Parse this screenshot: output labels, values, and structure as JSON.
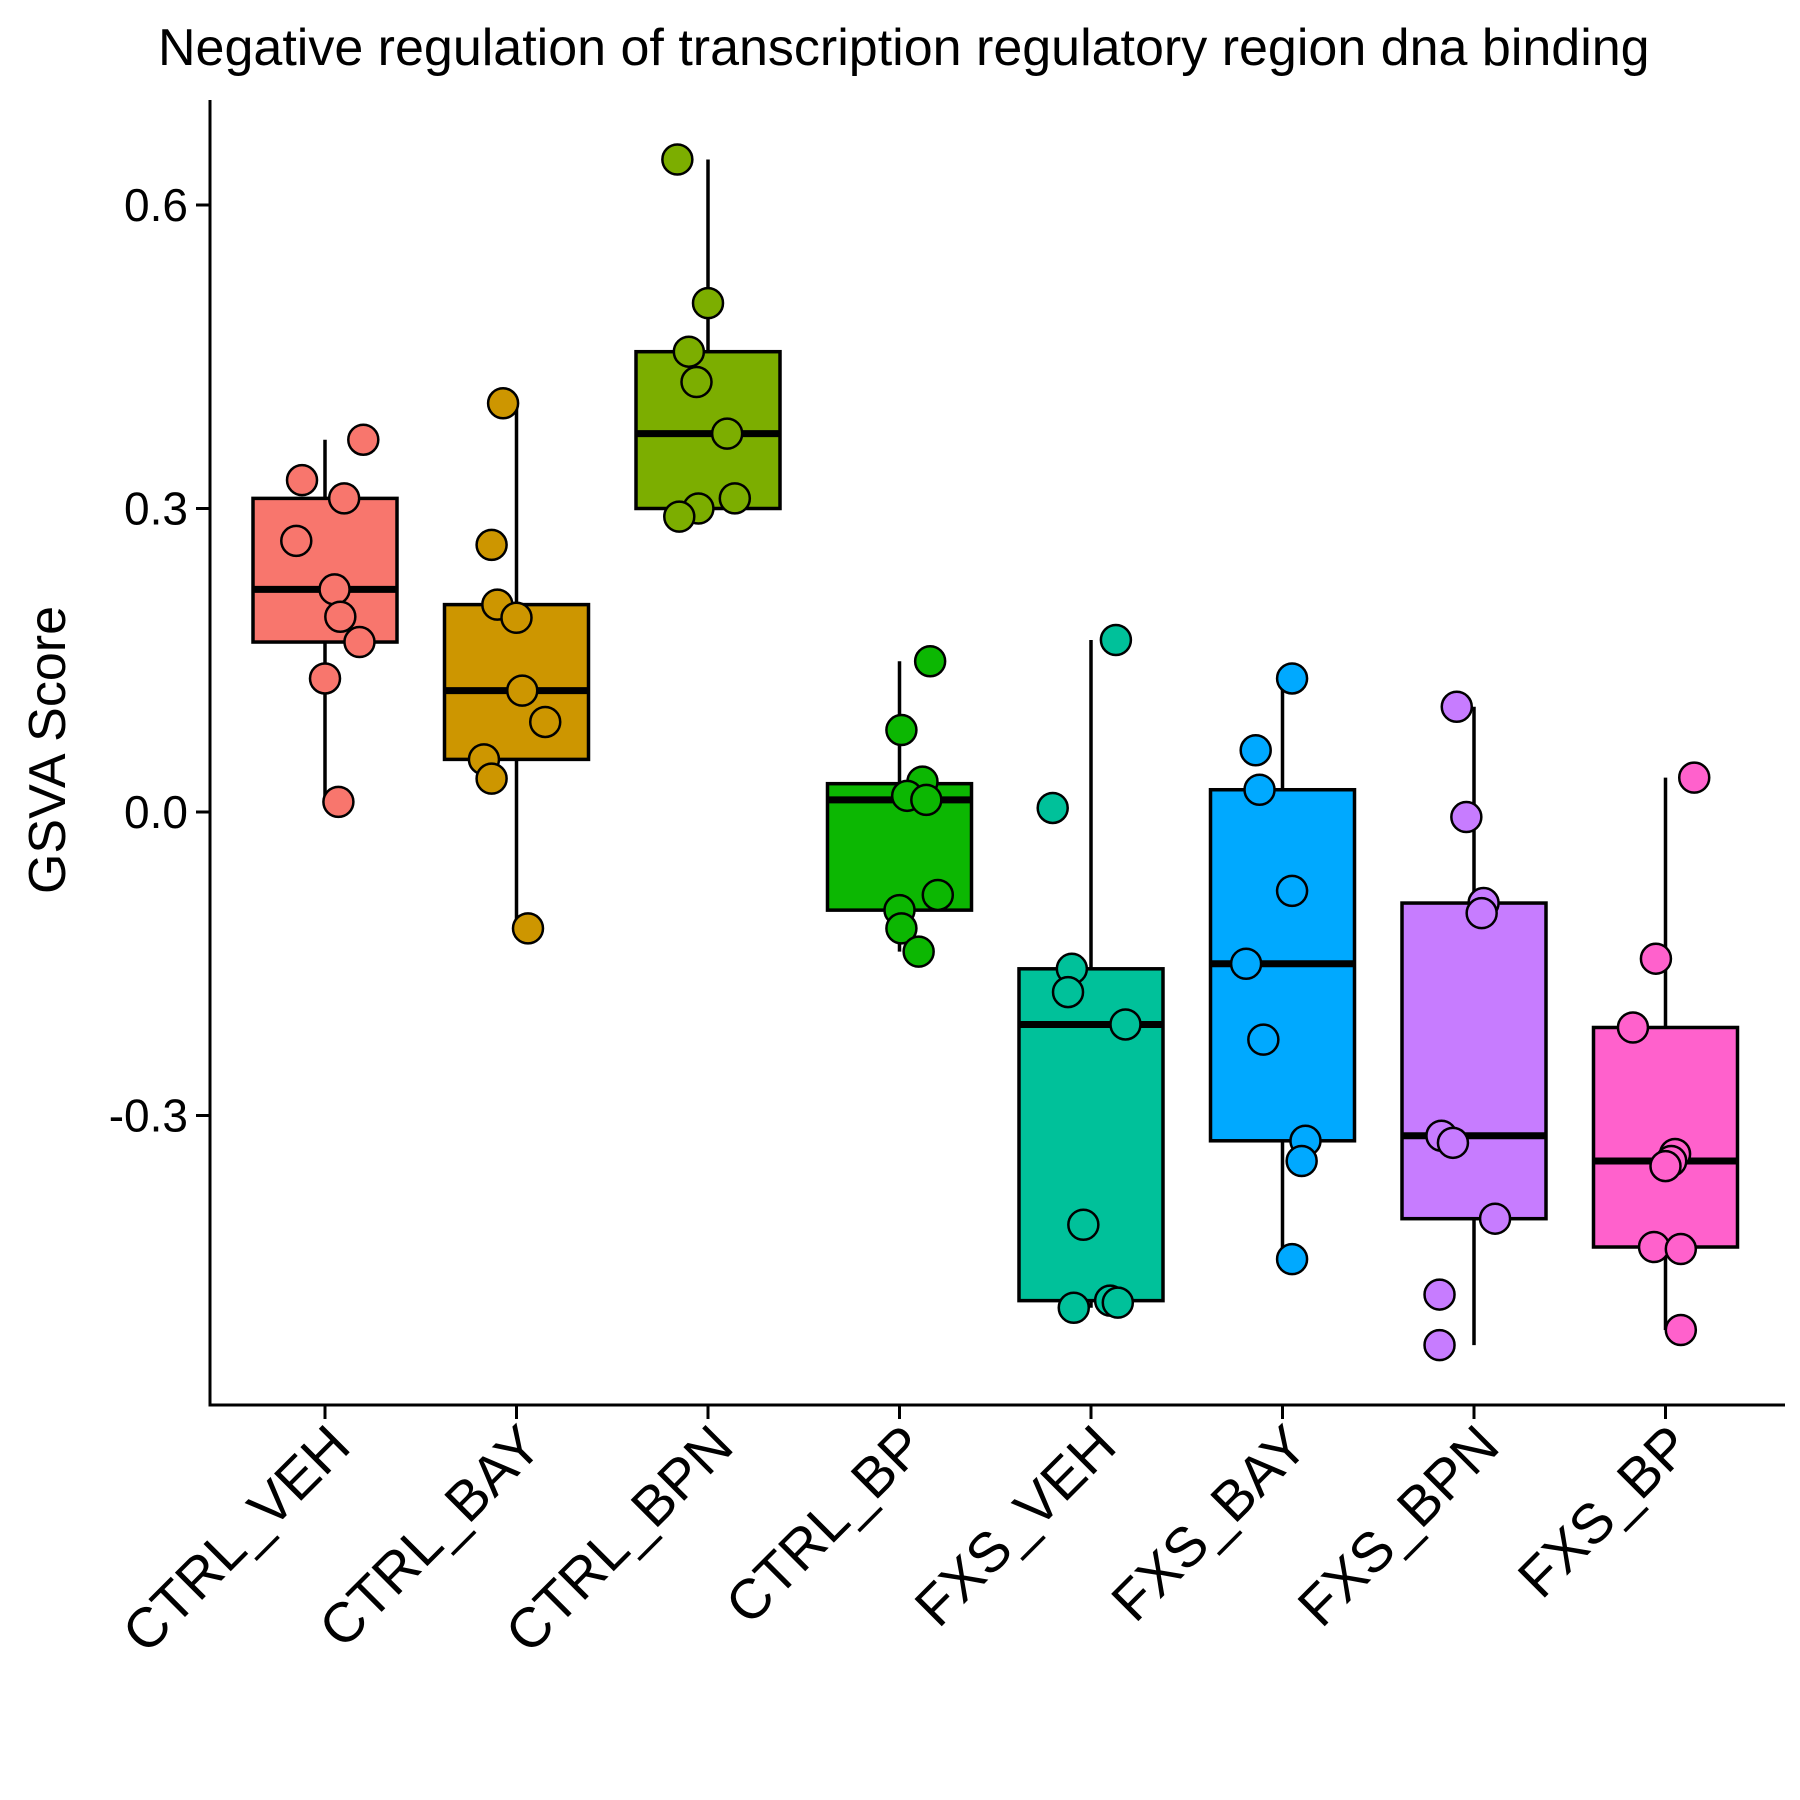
{
  "chart_data": {
    "type": "box",
    "title": "Negative regulation of transcription regulatory region dna binding",
    "xlabel": "",
    "ylabel": "GSVA Score",
    "ylim": [
      -0.58,
      0.7
    ],
    "yticks": [
      -0.3,
      0.0,
      0.3,
      0.6
    ],
    "ytick_labels": [
      "-0.3",
      "0.0",
      "0.3",
      "0.6"
    ],
    "categories": [
      "CTRL_VEH",
      "CTRL_BAY",
      "CTRL_BPN",
      "CTRL_BP",
      "FXS_VEH",
      "FXS_BAY",
      "FXS_BPN",
      "FXS_BP"
    ],
    "legend": "none",
    "grid": false,
    "groups": [
      {
        "name": "CTRL_VEH",
        "color": "#F8766D",
        "box": {
          "whisker_low": 0.01,
          "q1": 0.168,
          "median": 0.22,
          "q3": 0.31,
          "whisker_high": 0.368
        },
        "points": [
          0.368,
          0.328,
          0.31,
          0.268,
          0.22,
          0.193,
          0.168,
          0.132,
          0.01
        ],
        "jitter": [
          0.2,
          -0.12,
          0.1,
          -0.15,
          0.05,
          0.08,
          0.18,
          0.0,
          0.07
        ]
      },
      {
        "name": "CTRL_BAY",
        "color": "#CD9600",
        "box": {
          "whisker_low": -0.115,
          "q1": 0.052,
          "median": 0.12,
          "q3": 0.205,
          "whisker_high": 0.404
        },
        "points": [
          0.404,
          0.264,
          0.205,
          0.192,
          0.12,
          0.089,
          0.052,
          0.033,
          -0.115
        ],
        "jitter": [
          -0.07,
          -0.13,
          -0.1,
          0.0,
          0.03,
          0.15,
          -0.17,
          -0.13,
          0.06
        ]
      },
      {
        "name": "CTRL_BPN",
        "color": "#7CAE00",
        "box": {
          "whisker_low": 0.292,
          "q1": 0.3,
          "median": 0.374,
          "q3": 0.455,
          "whisker_high": 0.645
        },
        "points": [
          0.645,
          0.503,
          0.455,
          0.425,
          0.374,
          0.31,
          0.3,
          0.292
        ],
        "jitter": [
          -0.16,
          0.0,
          -0.1,
          -0.06,
          0.1,
          0.14,
          -0.05,
          -0.15
        ]
      },
      {
        "name": "CTRL_BP",
        "color": "#0CB702",
        "box": {
          "whisker_low": -0.138,
          "q1": -0.097,
          "median": 0.012,
          "q3": 0.028,
          "whisker_high": 0.149
        },
        "points": [
          0.149,
          0.081,
          0.03,
          0.016,
          0.012,
          -0.082,
          -0.097,
          -0.115,
          -0.138
        ],
        "jitter": [
          0.16,
          0.01,
          0.12,
          0.04,
          0.14,
          0.2,
          0.0,
          0.01,
          0.1
        ]
      },
      {
        "name": "FXS_VEH",
        "color": "#00C19A",
        "box": {
          "whisker_low": -0.49,
          "q1": -0.483,
          "median": -0.21,
          "q3": -0.155,
          "whisker_high": 0.17
        },
        "points": [
          0.17,
          0.004,
          -0.155,
          -0.178,
          -0.21,
          -0.408,
          -0.483,
          -0.485,
          -0.49
        ],
        "jitter": [
          0.13,
          -0.2,
          -0.1,
          -0.12,
          0.18,
          -0.04,
          0.1,
          0.14,
          -0.09
        ]
      },
      {
        "name": "FXS_BAY",
        "color": "#00A9FF",
        "box": {
          "whisker_low": -0.442,
          "q1": -0.325,
          "median": -0.15,
          "q3": 0.022,
          "whisker_high": 0.132
        },
        "points": [
          0.132,
          0.061,
          0.022,
          -0.078,
          -0.15,
          -0.225,
          -0.325,
          -0.345,
          -0.442
        ],
        "jitter": [
          0.05,
          -0.14,
          -0.12,
          0.05,
          -0.19,
          -0.1,
          0.12,
          0.1,
          0.05
        ]
      },
      {
        "name": "FXS_BPN",
        "color": "#C77CFF",
        "box": {
          "whisker_low": -0.527,
          "q1": -0.402,
          "median": -0.32,
          "q3": -0.09,
          "whisker_high": 0.104
        },
        "points": [
          0.104,
          -0.005,
          -0.09,
          -0.1,
          -0.32,
          -0.327,
          -0.402,
          -0.477,
          -0.527
        ],
        "jitter": [
          -0.09,
          -0.04,
          0.05,
          0.04,
          -0.17,
          -0.11,
          0.11,
          -0.18,
          -0.18
        ]
      },
      {
        "name": "FXS_BP",
        "color": "#FF61CC",
        "box": {
          "whisker_low": -0.512,
          "q1": -0.43,
          "median": -0.345,
          "q3": -0.213,
          "whisker_high": 0.034
        },
        "points": [
          0.034,
          -0.145,
          -0.213,
          -0.338,
          -0.345,
          -0.35,
          -0.43,
          -0.432,
          -0.512
        ],
        "jitter": [
          0.15,
          -0.05,
          -0.17,
          0.05,
          0.03,
          0.0,
          -0.06,
          0.08,
          0.08
        ]
      }
    ]
  }
}
